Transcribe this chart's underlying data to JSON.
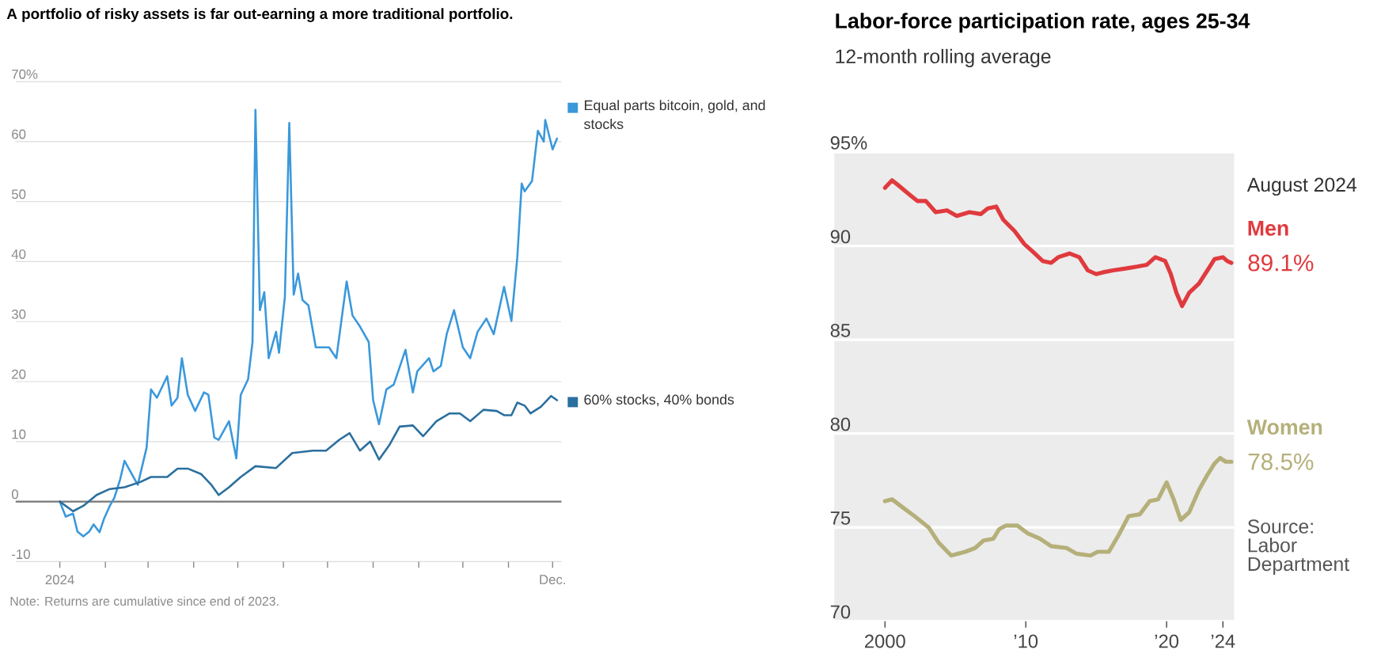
{
  "chart_data": [
    {
      "type": "line",
      "title": "A portfolio of risky assets is far out-earning a more traditional portfolio.",
      "xlim": [
        "2023-12-02",
        "2024-12-07"
      ],
      "ylim": [
        -10,
        70
      ],
      "xticks": [
        {
          "value": "2024-01-01",
          "label": "2024"
        },
        {
          "value": "2024-02-01",
          "label": null
        },
        {
          "value": "2024-03-01",
          "label": null
        },
        {
          "value": "2024-04-01",
          "label": null
        },
        {
          "value": "2024-05-01",
          "label": null
        },
        {
          "value": "2024-06-01",
          "label": null
        },
        {
          "value": "2024-07-01",
          "label": null
        },
        {
          "value": "2024-08-01",
          "label": null
        },
        {
          "value": "2024-09-01",
          "label": null
        },
        {
          "value": "2024-10-01",
          "label": null
        },
        {
          "value": "2024-11-01",
          "label": null
        },
        {
          "value": "2024-12-01",
          "label": "Dec."
        }
      ],
      "yticks": [
        -10,
        0,
        10,
        20,
        30,
        40,
        50,
        60,
        {
          "value": 70,
          "label": "70%"
        }
      ],
      "grid": "y",
      "legend": "right",
      "ref_lines": [
        {
          "axis": "y",
          "value": 0,
          "color": "#777777"
        }
      ],
      "annotations": [
        "Note: Returns are cumulative since end of 2023."
      ],
      "series": [
        {
          "name": "Equal parts bitcoin, gold, and stocks",
          "color": "#3a98db",
          "x": [
            "2024-01-01",
            "2024-01-05",
            "2024-01-10",
            "2024-01-13",
            "2024-01-17",
            "2024-01-21",
            "2024-01-24",
            "2024-01-28",
            "2024-01-31",
            "2024-02-04",
            "2024-02-07",
            "2024-02-11",
            "2024-02-14",
            "2024-02-18",
            "2024-02-23",
            "2024-02-29",
            "2024-03-03",
            "2024-03-07",
            "2024-03-14",
            "2024-03-17",
            "2024-03-21",
            "2024-03-24",
            "2024-03-28",
            "2024-04-02",
            "2024-04-08",
            "2024-04-11",
            "2024-04-15",
            "2024-04-18",
            "2024-04-25",
            "2024-04-30",
            "2024-05-03",
            "2024-05-08",
            "2024-05-11",
            "2024-05-13",
            "2024-05-16",
            "2024-05-19",
            "2024-05-22",
            "2024-05-27",
            "2024-05-29",
            "2024-06-02",
            "2024-06-05",
            "2024-06-08",
            "2024-06-11",
            "2024-06-14",
            "2024-06-18",
            "2024-06-23",
            "2024-07-02",
            "2024-07-07",
            "2024-07-14",
            "2024-07-18",
            "2024-07-23",
            "2024-07-29",
            "2024-08-01",
            "2024-08-05",
            "2024-08-10",
            "2024-08-15",
            "2024-08-23",
            "2024-08-28",
            "2024-08-31",
            "2024-09-08",
            "2024-09-11",
            "2024-09-16",
            "2024-09-20",
            "2024-09-25",
            "2024-10-01",
            "2024-10-06",
            "2024-10-11",
            "2024-10-17",
            "2024-10-22",
            "2024-10-29",
            "2024-11-03",
            "2024-11-07",
            "2024-11-10",
            "2024-11-12",
            "2024-11-17",
            "2024-11-21",
            "2024-11-25",
            "2024-11-26",
            "2024-12-01",
            "2024-12-04"
          ],
          "values": [
            0,
            -2.5,
            -2,
            -5,
            -5.8,
            -5,
            -3.8,
            -5.1,
            -2.9,
            -0.7,
            0.6,
            3.7,
            6.8,
            5,
            2.8,
            9,
            18.7,
            17.3,
            20.9,
            16,
            17.3,
            23.9,
            17.8,
            15.1,
            18.2,
            17.8,
            10.7,
            10.3,
            13.4,
            7.2,
            17.8,
            20.4,
            26.6,
            65.3,
            31.9,
            34.9,
            23.9,
            28.3,
            24.8,
            34.1,
            63.1,
            34.5,
            38,
            33.6,
            32.7,
            25.7,
            25.7,
            23.9,
            36.7,
            31,
            29.2,
            26.6,
            16.9,
            12.9,
            18.7,
            19.5,
            25.3,
            18.2,
            21.7,
            23.9,
            21.7,
            22.6,
            27.9,
            31.9,
            25.7,
            23.9,
            28.3,
            30.5,
            27.9,
            35.8,
            30.1,
            40.7,
            53,
            51.7,
            53.4,
            61.8,
            60,
            63.6,
            58.7,
            60.5
          ]
        },
        {
          "name": "60% stocks, 40% bonds",
          "color": "#2a6f9e",
          "x": [
            "2024-01-01",
            "2024-01-10",
            "2024-01-17",
            "2024-01-26",
            "2024-02-04",
            "2024-02-14",
            "2024-02-25",
            "2024-03-03",
            "2024-03-14",
            "2024-03-21",
            "2024-03-28",
            "2024-04-06",
            "2024-04-13",
            "2024-04-18",
            "2024-04-25",
            "2024-05-03",
            "2024-05-13",
            "2024-05-27",
            "2024-06-07",
            "2024-06-21",
            "2024-06-30",
            "2024-07-09",
            "2024-07-16",
            "2024-07-23",
            "2024-07-30",
            "2024-08-05",
            "2024-08-12",
            "2024-08-19",
            "2024-08-28",
            "2024-09-04",
            "2024-09-13",
            "2024-09-22",
            "2024-09-29",
            "2024-10-06",
            "2024-10-15",
            "2024-10-24",
            "2024-10-29",
            "2024-11-03",
            "2024-11-07",
            "2024-11-12",
            "2024-11-16",
            "2024-11-23",
            "2024-11-30",
            "2024-12-04"
          ],
          "values": [
            0,
            -1.6,
            -0.7,
            1.1,
            2.1,
            2.4,
            3.3,
            4.1,
            4.1,
            5.5,
            5.5,
            4.6,
            2.8,
            1.1,
            2.4,
            4.1,
            5.9,
            5.6,
            8.1,
            8.5,
            8.5,
            10.3,
            11.4,
            8.5,
            10,
            7,
            9.4,
            12.5,
            12.7,
            10.9,
            13.4,
            14.7,
            14.7,
            13.4,
            15.3,
            15.1,
            14.4,
            14.4,
            16.5,
            16,
            14.7,
            15.8,
            17.6,
            16.9
          ]
        }
      ]
    },
    {
      "type": "line",
      "title": "Labor-force participation rate, ages 25-34",
      "subtitle": "12-month rolling average",
      "xlim": [
        1996.4,
        2024.8
      ],
      "ylim": [
        70,
        95
      ],
      "xticks": [
        2000,
        {
          "value": 2010,
          "label": "’10"
        },
        {
          "value": 2020,
          "label": "’20"
        },
        {
          "value": 2024,
          "label": "’24"
        }
      ],
      "yticks": [
        70,
        75,
        80,
        85,
        90,
        {
          "value": 95,
          "label": "95%"
        }
      ],
      "grid": "y",
      "legend": false,
      "annotations": [
        "August 2024",
        {
          "text": "89.1%",
          "x": 2024.6,
          "y": 89.1
        },
        {
          "text": "78.5%",
          "x": 2024.6,
          "y": 78.5
        },
        "Source: Labor Department"
      ],
      "series": [
        {
          "name": "Men",
          "color": "#e03a3e",
          "x": [
            2000.0,
            2000.5,
            2001.0,
            2001.8,
            2002.3,
            2002.9,
            2003.6,
            2004.4,
            2005.1,
            2006.0,
            2006.8,
            2007.3,
            2007.9,
            2008.4,
            2009.2,
            2009.9,
            2010.5,
            2011.2,
            2011.8,
            2012.3,
            2013.1,
            2013.8,
            2014.4,
            2015.0,
            2015.5,
            2016.2,
            2017.1,
            2017.9,
            2018.6,
            2019.2,
            2019.9,
            2020.3,
            2020.7,
            2021.1,
            2021.6,
            2022.3,
            2022.9,
            2023.4,
            2024.0,
            2024.3,
            2024.6
          ],
          "values": [
            93.1,
            93.5,
            93.2,
            92.7,
            92.4,
            92.4,
            91.8,
            91.9,
            91.6,
            91.8,
            91.7,
            92.0,
            92.1,
            91.4,
            90.8,
            90.1,
            89.7,
            89.2,
            89.1,
            89.4,
            89.6,
            89.4,
            88.7,
            88.5,
            88.6,
            88.7,
            88.8,
            88.9,
            89.0,
            89.4,
            89.2,
            88.5,
            87.5,
            86.8,
            87.5,
            88.0,
            88.7,
            89.3,
            89.4,
            89.2,
            89.1
          ]
        },
        {
          "name": "Women",
          "color": "#b5b07a",
          "x": [
            2000.0,
            2000.5,
            2001.2,
            2002.1,
            2003.1,
            2003.8,
            2004.7,
            2005.7,
            2006.4,
            2007.0,
            2007.7,
            2008.1,
            2008.6,
            2009.4,
            2010.1,
            2011.0,
            2011.8,
            2012.9,
            2013.6,
            2014.6,
            2015.1,
            2015.9,
            2016.6,
            2017.3,
            2018.1,
            2018.8,
            2019.4,
            2020.0,
            2020.5,
            2021.0,
            2021.6,
            2022.3,
            2022.9,
            2023.4,
            2023.8,
            2024.2,
            2024.6
          ],
          "values": [
            76.4,
            76.5,
            76.1,
            75.6,
            75.0,
            74.2,
            73.5,
            73.7,
            73.9,
            74.3,
            74.4,
            74.9,
            75.1,
            75.1,
            74.7,
            74.4,
            74.0,
            73.9,
            73.6,
            73.5,
            73.7,
            73.7,
            74.6,
            75.6,
            75.7,
            76.4,
            76.5,
            77.4,
            76.5,
            75.4,
            75.8,
            77.0,
            77.8,
            78.4,
            78.7,
            78.5,
            78.5
          ]
        }
      ]
    }
  ]
}
